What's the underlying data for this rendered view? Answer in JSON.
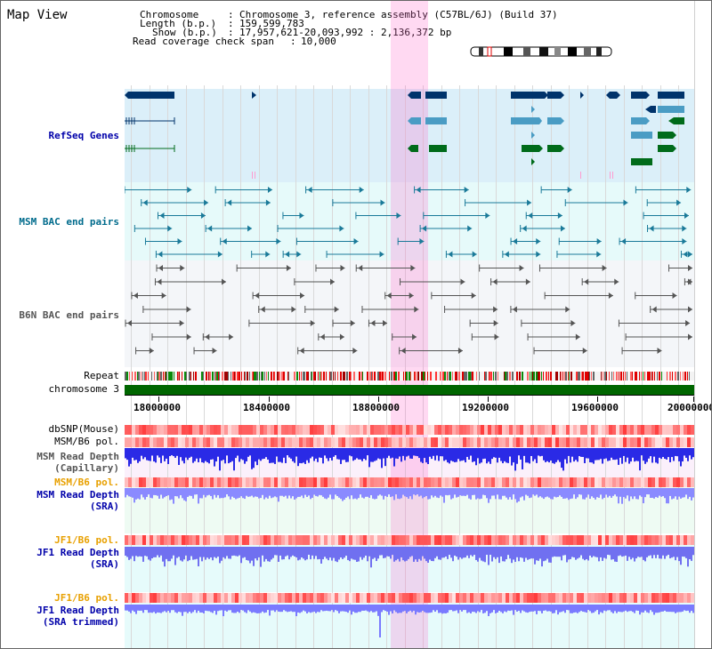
{
  "app": {
    "title": "Map View"
  },
  "info": {
    "chromosome_label": "Chromosome",
    "chromosome_value": "Chromosome 3, reference assembly (C57BL/6J) (Build 37)",
    "length_label": "Length (b.p.)",
    "length_value": "159,599,783",
    "show_label": "Show (b.p.)",
    "show_value": "17,957,621-20,093,992 : 2,136,372 bp",
    "coverage_label": "Read coverage check span",
    "coverage_value": "10,000"
  },
  "tracks": {
    "refseq": "RefSeq Genes",
    "msm_bac": "MSM BAC end pairs",
    "b6n_bac": "B6N BAC end pairs",
    "repeat": "Repeat",
    "chromosome": "chromosome 3",
    "dbsnp": "dbSNP(Mouse)",
    "msm_b6_pol_1": "MSM/B6 pol.",
    "msm_depth_cap": "MSM Read Depth\n(Capillary)",
    "msm_b6_pol_2": "MSM/B6 pol.",
    "msm_depth_sra": "MSM Read Depth\n(SRA)",
    "jf1_b6_pol_1": "JF1/B6 pol.",
    "jf1_depth_sra": "JF1 Read Depth\n(SRA)",
    "jf1_b6_pol_2": "JF1/B6 pol.",
    "jf1_depth_trim": "JF1 Read Depth\n(SRA trimmed)"
  },
  "axis": {
    "ticks": [
      "18000000",
      "18400000",
      "18800000",
      "19200000",
      "19600000",
      "20000000"
    ]
  },
  "colors": {
    "refseq_dark": "#00336b",
    "refseq_light": "#4a9cc4",
    "refseq_green": "#006b1a",
    "msm_bac": "#1a7a99",
    "b6n_bac": "#555555",
    "chromosome": "#006600",
    "depth_blue": "#1a1aff",
    "depth_light": "#7a7aff",
    "highlight": "#ff66cc"
  },
  "icons": [
    "chromosome-ideogram-icon"
  ]
}
